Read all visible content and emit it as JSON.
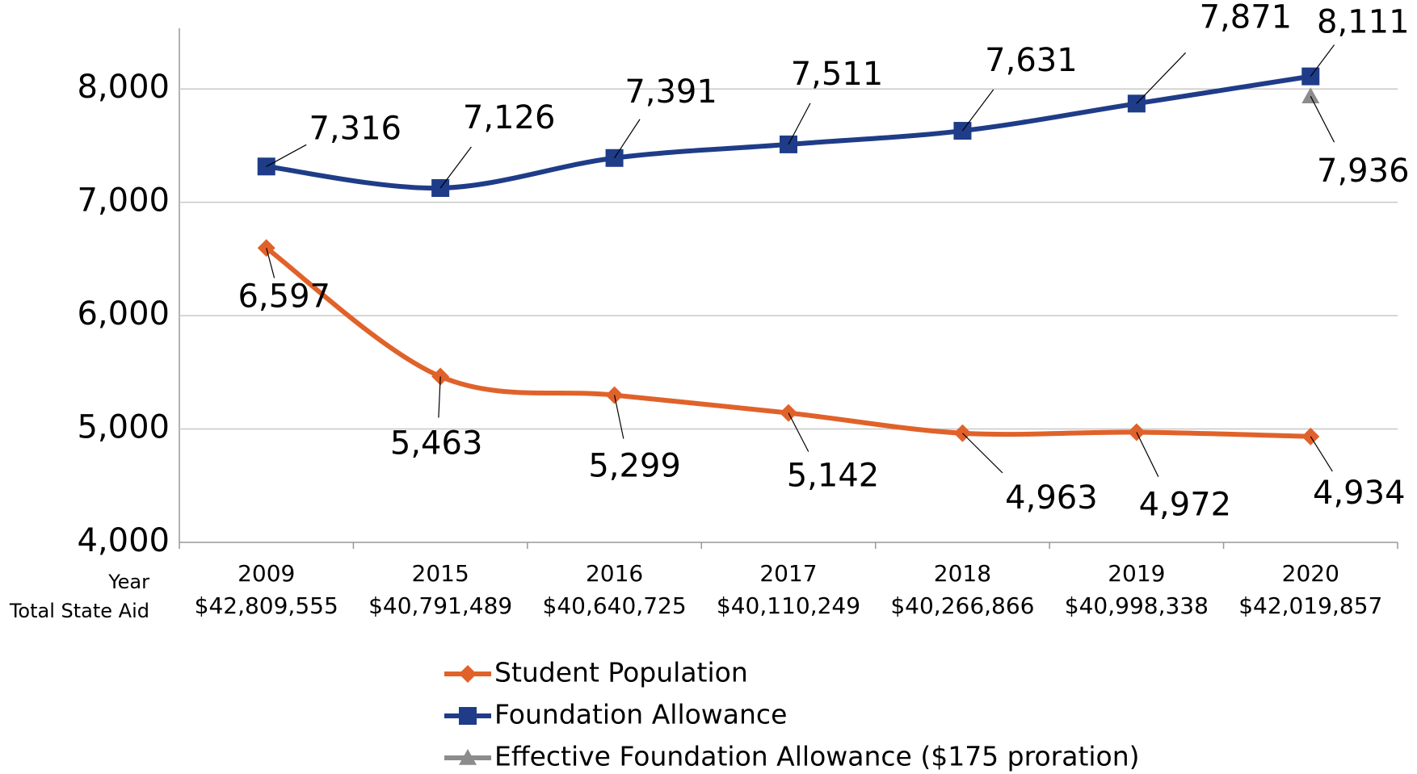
{
  "chart_data": {
    "type": "line",
    "category_row_labels": [
      "Year",
      "Total State Aid"
    ],
    "categories": [
      "2009",
      "2015",
      "2016",
      "2017",
      "2018",
      "2019",
      "2020"
    ],
    "total_state_aid": [
      "$42,809,555",
      "$40,791,489",
      "$40,640,725",
      "$40,110,249",
      "$40,266,866",
      "$40,998,338",
      "$42,019,857"
    ],
    "series": [
      {
        "name": "Student Population",
        "color": "#e0622a",
        "marker": "diamond",
        "values": [
          6597,
          5463,
          5299,
          5142,
          4963,
          4972,
          4934
        ],
        "value_labels": [
          "6,597",
          "5,463",
          "5,299",
          "5,142",
          "4,963",
          "4,972",
          "4,934"
        ]
      },
      {
        "name": "Foundation Allowance",
        "color": "#1f3c88",
        "marker": "square",
        "values": [
          7316,
          7126,
          7391,
          7511,
          7631,
          7871,
          8111
        ],
        "value_labels": [
          "7,316",
          "7,126",
          "7,391",
          "7,511",
          "7,631",
          "7,871",
          "8,111"
        ]
      },
      {
        "name": "Effective Foundation Allowance ($175 proration)",
        "color": "#8c8c8c",
        "marker": "triangle",
        "values": [
          null,
          null,
          null,
          null,
          null,
          null,
          7936
        ],
        "value_labels": [
          null,
          null,
          null,
          null,
          null,
          null,
          "7,936"
        ]
      }
    ],
    "ylim": [
      4000,
      8500
    ],
    "yticks": [
      {
        "value": 4000,
        "label": "4,000"
      },
      {
        "value": 5000,
        "label": "5,000"
      },
      {
        "value": 6000,
        "label": "6,000"
      },
      {
        "value": 7000,
        "label": "7,000"
      },
      {
        "value": 8000,
        "label": "8,000"
      }
    ],
    "grid": true,
    "legend": "bottom"
  }
}
